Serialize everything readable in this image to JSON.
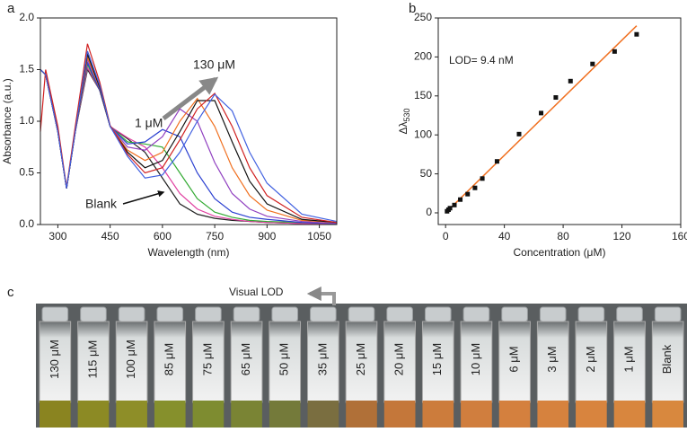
{
  "chart_data": [
    {
      "type": "line",
      "panel": "a",
      "xlabel": "Wavelength (nm)",
      "ylabel": "Absorbance (a.u.)",
      "xlim": [
        250,
        1100
      ],
      "xticks": [
        300,
        450,
        600,
        750,
        900,
        1050
      ],
      "ylim": [
        0,
        2.0
      ],
      "yticks": [
        {
          "value": 0,
          "label": "0.0"
        },
        0.5,
        {
          "value": 1,
          "label": "1.0"
        },
        1.5,
        {
          "value": 2,
          "label": "2.0"
        }
      ],
      "annotations": [
        "130 μM",
        "1 μM",
        "Blank"
      ],
      "x": [
        250,
        265,
        300,
        325,
        350,
        385,
        420,
        450,
        500,
        550,
        600,
        650,
        700,
        750,
        800,
        850,
        900,
        1000,
        1100
      ],
      "series": [
        {
          "color": "#222222",
          "values": [
            1.5,
            1.45,
            0.9,
            0.35,
            0.9,
            1.5,
            1.3,
            0.95,
            0.83,
            0.7,
            0.45,
            0.2,
            0.1,
            0.06,
            0.04,
            0.03,
            0.02,
            0.01,
            0.01
          ]
        },
        {
          "color": "#e040a0",
          "values": [
            1.5,
            1.45,
            0.9,
            0.35,
            0.9,
            1.52,
            1.3,
            0.95,
            0.84,
            0.75,
            0.55,
            0.3,
            0.15,
            0.08,
            0.05,
            0.03,
            0.02,
            0.01,
            0.01
          ]
        },
        {
          "color": "#33aa33",
          "values": [
            1.5,
            1.45,
            0.9,
            0.35,
            0.9,
            1.55,
            1.3,
            0.95,
            0.8,
            0.78,
            0.75,
            0.5,
            0.25,
            0.12,
            0.07,
            0.04,
            0.03,
            0.02,
            0.01
          ]
        },
        {
          "color": "#2a3fd0",
          "values": [
            1.5,
            1.45,
            0.9,
            0.35,
            0.9,
            1.57,
            1.3,
            0.95,
            0.78,
            0.8,
            0.92,
            0.85,
            0.5,
            0.25,
            0.12,
            0.07,
            0.05,
            0.02,
            0.01
          ]
        },
        {
          "color": "#9040c0",
          "values": [
            1.5,
            1.45,
            0.9,
            0.35,
            0.9,
            1.6,
            1.32,
            0.95,
            0.75,
            0.72,
            0.85,
            1.12,
            1.0,
            0.6,
            0.3,
            0.15,
            0.08,
            0.03,
            0.01
          ]
        },
        {
          "color": "#f07020",
          "values": [
            1.5,
            1.45,
            0.9,
            0.35,
            0.9,
            1.62,
            1.32,
            0.95,
            0.72,
            0.62,
            0.7,
            1.0,
            1.22,
            0.95,
            0.55,
            0.28,
            0.14,
            0.04,
            0.02
          ]
        },
        {
          "color": "#111111",
          "values": [
            1.5,
            1.45,
            0.9,
            0.35,
            0.9,
            1.65,
            1.33,
            0.95,
            0.7,
            0.55,
            0.62,
            0.9,
            1.2,
            1.2,
            0.8,
            0.42,
            0.2,
            0.05,
            0.02
          ]
        },
        {
          "color": "#d02020",
          "values": [
            0.9,
            1.5,
            0.95,
            0.36,
            0.95,
            1.75,
            1.38,
            0.96,
            0.68,
            0.5,
            0.55,
            0.82,
            1.12,
            1.27,
            0.95,
            0.55,
            0.28,
            0.07,
            0.02
          ]
        },
        {
          "color": "#4060e0",
          "values": [
            1.5,
            1.45,
            0.9,
            0.35,
            0.9,
            1.68,
            1.35,
            0.95,
            0.66,
            0.45,
            0.48,
            0.7,
            1.0,
            1.26,
            1.1,
            0.7,
            0.4,
            0.1,
            0.03
          ]
        }
      ]
    },
    {
      "type": "scatter",
      "panel": "b",
      "xlabel": "Concentration (μM)",
      "ylabel": {
        "text": "Δλ",
        "sub": "530"
      },
      "xlim": [
        -5,
        160
      ],
      "xticks": [
        0,
        40,
        80,
        120,
        160
      ],
      "ylim": [
        -15,
        250
      ],
      "yticks": [
        0,
        50,
        100,
        150,
        200,
        250
      ],
      "annotations": [
        "LOD= 9.4 nM"
      ],
      "color": "#111111",
      "x": [
        1,
        2,
        3,
        6,
        10,
        15,
        20,
        25,
        35,
        50,
        65,
        75,
        85,
        100,
        115,
        130
      ],
      "values": [
        2,
        4,
        6,
        10,
        17,
        24,
        32,
        44,
        66,
        101,
        128,
        148,
        169,
        191,
        207,
        229
      ],
      "fit": {
        "color": "#f07020",
        "x": [
          0,
          130
        ],
        "values": [
          0,
          240
        ]
      }
    }
  ],
  "photo": {
    "panel": "c",
    "caption": "Visual LOD",
    "vials": [
      {
        "label": "130 μM",
        "color": "#8a8420"
      },
      {
        "label": "115 μM",
        "color": "#8c8a24"
      },
      {
        "label": "100 μM",
        "color": "#8e8e28"
      },
      {
        "label": "85 μM",
        "color": "#86902c"
      },
      {
        "label": "75 μM",
        "color": "#7e8c30"
      },
      {
        "label": "65 μM",
        "color": "#7a8434"
      },
      {
        "label": "50 μM",
        "color": "#747a3a"
      },
      {
        "label": "35 μM",
        "color": "#7a6e40"
      },
      {
        "label": "25 μM",
        "color": "#b07038"
      },
      {
        "label": "20 μM",
        "color": "#c4773a"
      },
      {
        "label": "15 μM",
        "color": "#cc7c3c"
      },
      {
        "label": "10 μM",
        "color": "#d07e3e"
      },
      {
        "label": "6 μM",
        "color": "#d4803e"
      },
      {
        "label": "3 μM",
        "color": "#d6823e"
      },
      {
        "label": "2 μM",
        "color": "#d8843e"
      },
      {
        "label": "1 μM",
        "color": "#d8863e"
      },
      {
        "label": "Blank",
        "color": "#d8883e"
      }
    ]
  }
}
